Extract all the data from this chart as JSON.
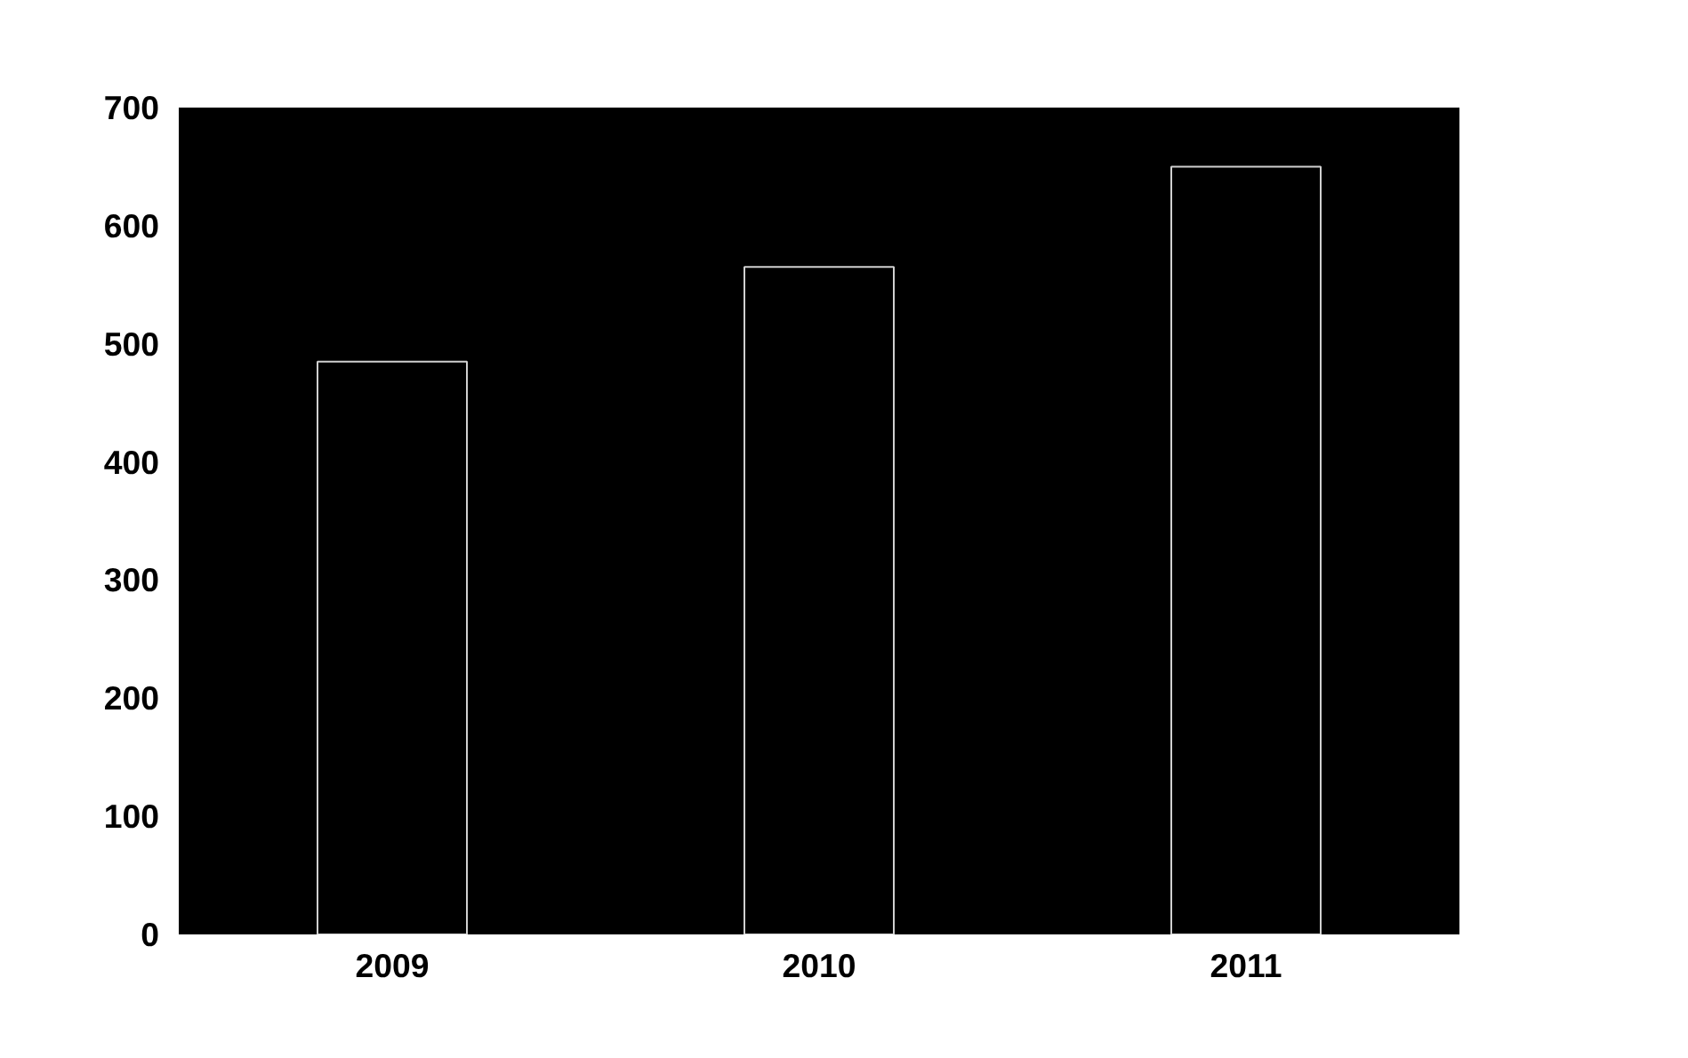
{
  "chart_data": {
    "type": "bar",
    "categories": [
      "2009",
      "2010",
      "2011"
    ],
    "values": [
      485,
      565,
      650
    ],
    "color": "#000000",
    "ylim": [
      0,
      700
    ],
    "yticks": [
      0,
      100,
      200,
      300,
      400,
      500,
      600,
      700
    ],
    "grid": false
  }
}
